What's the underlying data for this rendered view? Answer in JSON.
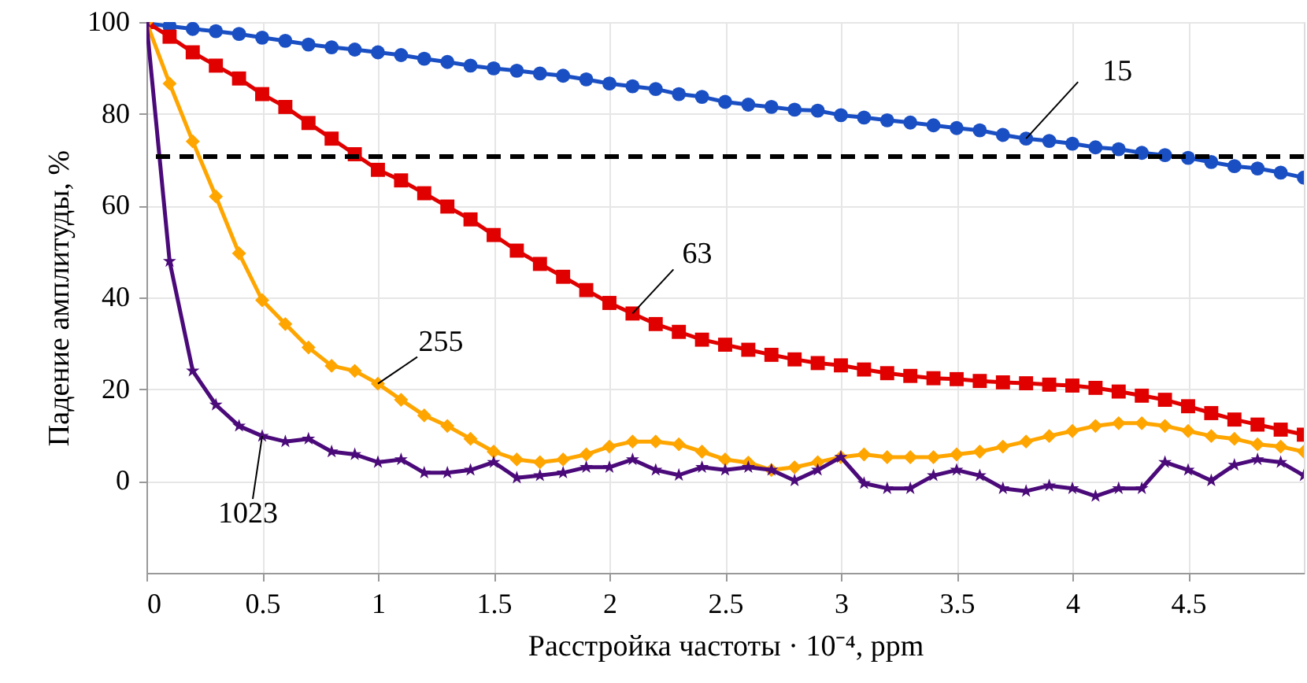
{
  "chart_data": {
    "type": "line",
    "xlabel": "Расстройка частоты · 10⁻⁴, ppm",
    "ylabel": "Падение амплитуды, %",
    "x": [
      0,
      0.1,
      0.2,
      0.3,
      0.4,
      0.5,
      0.6,
      0.7,
      0.8,
      0.9,
      1.0,
      1.1,
      1.2,
      1.3,
      1.4,
      1.5,
      1.6,
      1.7,
      1.8,
      1.9,
      2.0,
      2.1,
      2.2,
      2.3,
      2.4,
      2.5,
      2.6,
      2.7,
      2.8,
      2.9,
      3.0,
      3.1,
      3.2,
      3.3,
      3.4,
      3.5,
      3.6,
      3.7,
      3.8,
      3.9,
      4.0,
      4.1,
      4.2,
      4.3,
      4.4,
      4.5,
      4.6,
      4.7,
      4.8,
      4.9,
      5.0
    ],
    "series": [
      {
        "color": "#1a4fc4",
        "marker": "circle",
        "values": [
          99.7,
          99.1,
          98.5,
          98.0,
          97.4,
          96.6,
          95.9,
          95.1,
          94.5,
          94.0,
          93.4,
          92.8,
          92.0,
          91.3,
          90.5,
          89.9,
          89.4,
          88.8,
          88.3,
          87.5,
          86.6,
          86.0,
          85.4,
          84.3,
          83.7,
          82.6,
          82.0,
          81.5,
          80.9,
          80.7,
          79.7,
          79.2,
          78.6,
          78.1,
          77.5,
          76.9,
          76.4,
          75.4,
          74.6,
          74.1,
          73.5,
          72.7,
          72.3,
          71.5,
          71.0,
          70.4,
          69.5,
          68.6,
          68.1,
          67.2,
          66.1
        ]
      },
      {
        "color": "#e00000",
        "marker": "square",
        "values": [
          100,
          96.8,
          93.4,
          90.5,
          87.7,
          84.3,
          81.5,
          78.0,
          74.6,
          71.2,
          67.8,
          65.5,
          62.7,
          59.8,
          57.0,
          53.6,
          50.2,
          47.3,
          44.5,
          41.6,
          38.8,
          36.5,
          34.2,
          32.5,
          30.8,
          29.7,
          28.6,
          27.5,
          26.5,
          25.7,
          25.2,
          24.3,
          23.5,
          22.9,
          22.4,
          22.2,
          21.8,
          21.5,
          21.3,
          21.0,
          20.8,
          20.3,
          19.5,
          18.6,
          17.7,
          16.3,
          14.8,
          13.4,
          12.3,
          11.2,
          10.1
        ]
      },
      {
        "color": "#ffa500",
        "marker": "diamond",
        "values": [
          100,
          86.6,
          74.0,
          62.0,
          49.6,
          39.4,
          34.2,
          29.1,
          25.1,
          24.0,
          21.2,
          17.7,
          14.3,
          12.0,
          9.2,
          6.4,
          4.7,
          4.1,
          4.7,
          5.8,
          7.5,
          8.6,
          8.6,
          8.0,
          6.4,
          4.7,
          4.0,
          2.4,
          3.0,
          4.1,
          5.2,
          5.8,
          5.2,
          5.2,
          5.2,
          5.8,
          6.4,
          7.5,
          8.6,
          9.8,
          10.9,
          12.0,
          12.6,
          12.6,
          12.0,
          10.9,
          9.8,
          9.2,
          8.0,
          7.5,
          6.4
        ]
      },
      {
        "color": "#4b0a7a",
        "marker": "star",
        "values": [
          100,
          47.9,
          24.0,
          16.6,
          12.0,
          9.8,
          8.6,
          9.2,
          6.4,
          5.8,
          4.1,
          4.7,
          1.8,
          1.8,
          2.4,
          4.1,
          0.7,
          1.2,
          1.8,
          3.0,
          3.0,
          4.7,
          2.4,
          1.3,
          3.0,
          2.4,
          3.0,
          2.4,
          0.1,
          2.4,
          5.2,
          -0.5,
          -1.6,
          -1.6,
          1.2,
          2.4,
          1.2,
          -1.6,
          -2.2,
          -1.0,
          -1.6,
          -3.3,
          -1.6,
          -1.6,
          4.1,
          2.4,
          0.1,
          3.5,
          4.7,
          4.1,
          1.2
        ]
      }
    ],
    "xlim": [
      0,
      5
    ],
    "xticks": [
      0,
      0.5,
      1,
      1.5,
      2,
      2.5,
      3,
      3.5,
      4,
      4.5
    ],
    "ylim": [
      -20,
      100
    ],
    "yticks": [
      0,
      20,
      40,
      60,
      80,
      100
    ],
    "grid": true,
    "line_style": "solid",
    "ref_lines": [
      {
        "axis": "y",
        "value": 70.7,
        "color": "#000000",
        "line_style": "dashed"
      }
    ],
    "annotations": [
      {
        "text": "15",
        "x": 3.8,
        "y": 74.6
      },
      {
        "text": "63",
        "x": 2.1,
        "y": 36.5
      },
      {
        "text": "255",
        "x": 1.0,
        "y": 21.2
      },
      {
        "text": "1023",
        "x": 0.5,
        "y": 9.8
      }
    ]
  }
}
